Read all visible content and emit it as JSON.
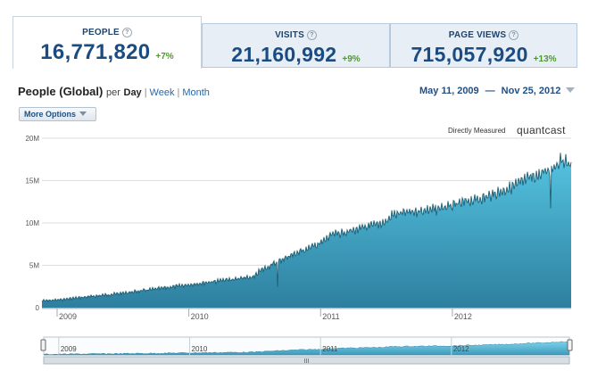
{
  "metrics": [
    {
      "title": "PEOPLE",
      "value": "16,771,820",
      "change": "+7%",
      "active": true
    },
    {
      "title": "VISITS",
      "value": "21,160,992",
      "change": "+9%",
      "active": false
    },
    {
      "title": "PAGE VIEWS",
      "value": "715,057,920",
      "change": "+13%",
      "active": false
    }
  ],
  "heading": {
    "title": "People (Global)",
    "per": "per",
    "day": "Day",
    "week": "Week",
    "month": "Month"
  },
  "date_range": {
    "start": "May 11, 2009",
    "dash": "—",
    "end": "Nov 25, 2012"
  },
  "more_options": "More Options",
  "directly_measured": "Directly Measured",
  "brand": "quantcast",
  "navigator": {
    "scrollbar_grip": "III"
  },
  "colors": {
    "fill_top": "#55c5e2",
    "fill_bottom": "#2e7f9f",
    "line": "#1f5f74",
    "change_positive": "#4d9a2a",
    "link": "#2a67a8"
  },
  "chart_data": {
    "type": "area",
    "xlabel": "",
    "ylabel": "",
    "ylim": [
      0,
      20000000
    ],
    "xlim": [
      "2008-11-20",
      "2012-11-25"
    ],
    "y_ticks": [
      0,
      5000000,
      10000000,
      15000000,
      20000000
    ],
    "y_tick_labels": [
      "0",
      "5M",
      "10M",
      "15M",
      "20M"
    ],
    "x_tick_labels": [
      "2009",
      "2010",
      "2011",
      "2012"
    ],
    "grid": true,
    "series": [
      {
        "x": [
          "2008-11-20",
          "2009-01-01",
          "2009-04-01",
          "2009-07-01",
          "2009-10-01",
          "2010-01-01",
          "2010-04-01",
          "2010-07-01",
          "2010-07-15",
          "2010-10-01",
          "2011-01-01",
          "2011-02-01",
          "2011-04-01",
          "2011-07-01",
          "2011-07-20",
          "2011-10-01",
          "2012-01-01",
          "2012-02-15",
          "2012-03-01",
          "2012-04-01",
          "2012-05-01",
          "2012-06-01",
          "2012-07-01",
          "2012-08-01",
          "2012-09-01",
          "2012-10-01",
          "2012-11-01",
          "2012-11-25"
        ],
        "values": [
          800000,
          900000,
          1300000,
          1700000,
          2200000,
          2700000,
          3200000,
          3600000,
          4300000,
          6000000,
          7600000,
          8600000,
          9100000,
          10100000,
          11000000,
          11400000,
          12000000,
          12600000,
          12700000,
          13000000,
          13500000,
          14000000,
          14600000,
          15300000,
          15700000,
          16500000,
          17400000,
          16800000
        ]
      }
    ],
    "navigator": {
      "x_tick_labels": [
        "2009",
        "2010",
        "2011",
        "2012"
      ]
    }
  }
}
